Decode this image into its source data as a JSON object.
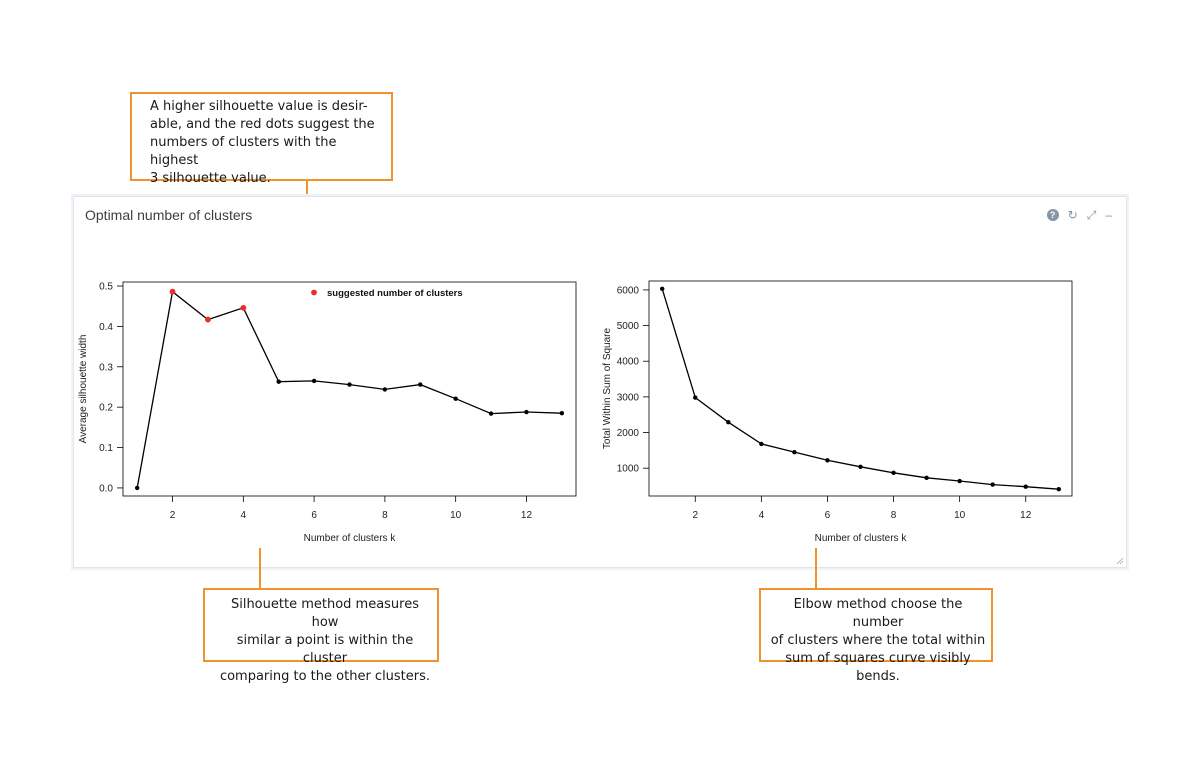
{
  "panel": {
    "title": "Optimal number of clusters",
    "tools": {
      "help_icon": "?",
      "refresh_icon": "↻",
      "expand_icon": "⤢",
      "minimize_icon": "–"
    }
  },
  "callouts": {
    "top": "A higher silhouette value is desir-\nable, and the red dots suggest the\nnumbers of clusters with the highest\n3 silhouette value.",
    "silhouette": "Silhouette method measures how\nsimilar a point is within the cluster\ncomparing to the other clusters.",
    "elbow": "Elbow method choose the number\nof clusters where the total within\nsum of squares curve visibly bends."
  },
  "colors": {
    "accent": "#f0932f",
    "highlight": "#e8302a",
    "line": "#000000"
  },
  "chart_data": [
    {
      "type": "line",
      "title": "",
      "xlabel": "Number of clusters k",
      "ylabel": "Average silhouette width",
      "x": [
        1,
        2,
        3,
        4,
        5,
        6,
        7,
        8,
        9,
        10,
        11,
        12,
        13
      ],
      "values": [
        0.0,
        0.486,
        0.417,
        0.446,
        0.263,
        0.265,
        0.256,
        0.244,
        0.256,
        0.221,
        0.184,
        0.188,
        0.185
      ],
      "xlim": [
        0.6,
        13.4
      ],
      "ylim": [
        -0.02,
        0.51
      ],
      "xticks": [
        2,
        4,
        6,
        8,
        10,
        12
      ],
      "yticks": [
        0.0,
        0.1,
        0.2,
        0.3,
        0.4,
        0.5
      ],
      "ytick_labels": [
        "0.0",
        "0.1",
        "0.2",
        "0.3",
        "0.4",
        "0.5"
      ],
      "highlight_x": [
        2,
        3,
        4
      ],
      "legend": {
        "label": "suggested number of clusters",
        "position": "top"
      }
    },
    {
      "type": "line",
      "title": "",
      "xlabel": "Number of clusters k",
      "ylabel": "Total Within Sum of Square",
      "x": [
        1,
        2,
        3,
        4,
        5,
        6,
        7,
        8,
        9,
        10,
        11,
        12,
        13
      ],
      "values": [
        6030,
        2980,
        2290,
        1680,
        1450,
        1220,
        1040,
        870,
        730,
        640,
        540,
        480,
        410
      ],
      "xlim": [
        0.6,
        13.4
      ],
      "ylim": [
        220,
        6250
      ],
      "xticks": [
        2,
        4,
        6,
        8,
        10,
        12
      ],
      "yticks": [
        1000,
        2000,
        3000,
        4000,
        5000,
        6000
      ],
      "ytick_labels": [
        "1000",
        "2000",
        "3000",
        "4000",
        "5000",
        "6000"
      ],
      "highlight_x": [],
      "legend": null
    }
  ]
}
